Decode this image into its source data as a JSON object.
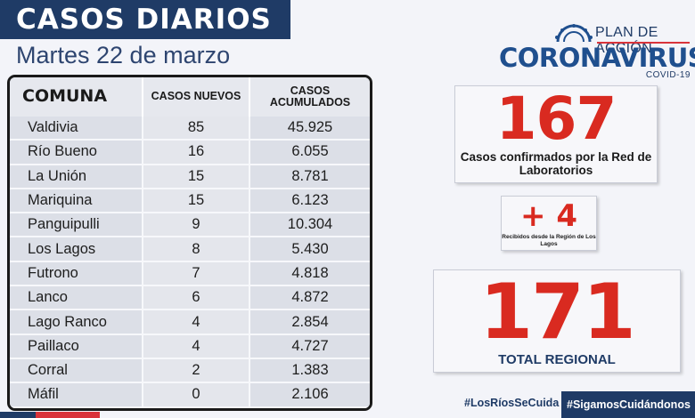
{
  "header": {
    "title": "CASOS DIARIOS",
    "date": "Martes 22 de marzo"
  },
  "logo": {
    "plan": "PLAN DE ACCIÓN",
    "name": "CORONAVIRUS",
    "sub": "COVID-19"
  },
  "table": {
    "columns": [
      "COMUNA",
      "CASOS NUEVOS",
      "CASOS ACUMULADOS"
    ],
    "rows": [
      {
        "comuna": "Valdivia",
        "nuevos": "85",
        "acumulados": "45.925"
      },
      {
        "comuna": "Río Bueno",
        "nuevos": "16",
        "acumulados": "6.055"
      },
      {
        "comuna": "La Unión",
        "nuevos": "15",
        "acumulados": "8.781"
      },
      {
        "comuna": "Mariquina",
        "nuevos": "15",
        "acumulados": "6.123"
      },
      {
        "comuna": "Panguipulli",
        "nuevos": "9",
        "acumulados": "10.304"
      },
      {
        "comuna": "Los Lagos",
        "nuevos": "8",
        "acumulados": "5.430"
      },
      {
        "comuna": "Futrono",
        "nuevos": "7",
        "acumulados": "4.818"
      },
      {
        "comuna": "Lanco",
        "nuevos": "6",
        "acumulados": "4.872"
      },
      {
        "comuna": "Lago Ranco",
        "nuevos": "4",
        "acumulados": "2.854"
      },
      {
        "comuna": "Paillaco",
        "nuevos": "4",
        "acumulados": "4.727"
      },
      {
        "comuna": "Corral",
        "nuevos": "2",
        "acumulados": "1.383"
      },
      {
        "comuna": "Máfil",
        "nuevos": "0",
        "acumulados": "2.106"
      }
    ]
  },
  "cards": {
    "confirmed": {
      "value": "167",
      "label": "Casos confirmados  por la Red de Laboratorios"
    },
    "received": {
      "value": "+ 4",
      "label": "Recibidos desde la Región de Los Lagos"
    },
    "total": {
      "value": "171",
      "label": "TOTAL REGIONAL"
    }
  },
  "footer": {
    "tag1": "#LosRíosSeCuida",
    "tag2": "#SigamosCuidándonos"
  },
  "colors": {
    "navy": "#1f3b66",
    "red": "#d92a20"
  }
}
